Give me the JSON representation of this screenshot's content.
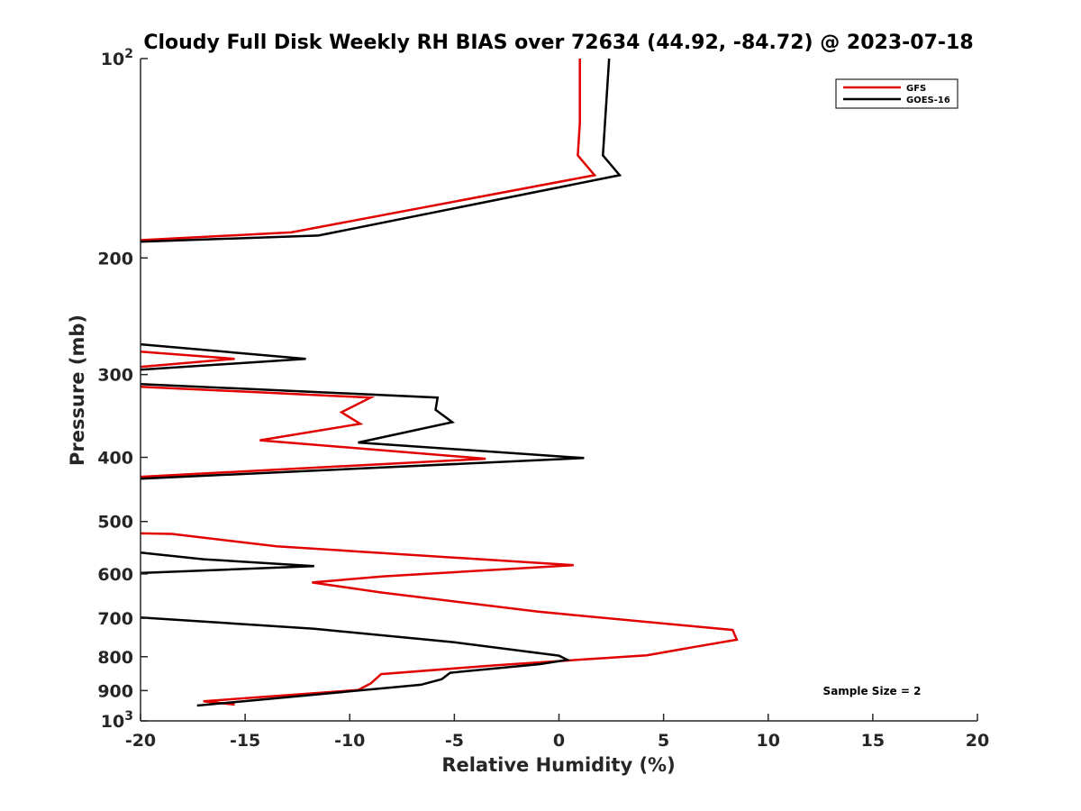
{
  "chart_data": {
    "type": "line",
    "title": "Cloudy Full Disk Weekly RH BIAS over 72634 (44.92, -84.72) @ 2023-07-18",
    "xlabel": "Relative Humidity (%)",
    "ylabel": "Pressure (mb)",
    "xlim": [
      -20,
      20
    ],
    "ylim": [
      100,
      1000
    ],
    "yscale": "log",
    "y_reversed": true,
    "grid": false,
    "legend_position": "top-right",
    "x_ticks": [
      -20,
      -15,
      -10,
      -5,
      0,
      5,
      10,
      15,
      20
    ],
    "x_tick_labels": [
      "-20",
      "-15",
      "-10",
      "-5",
      "0",
      "5",
      "10",
      "15",
      "20"
    ],
    "y_ticks": [
      {
        "value": 100,
        "base": "10",
        "exp": "2"
      },
      {
        "value": 200,
        "label": "200"
      },
      {
        "value": 300,
        "label": "300"
      },
      {
        "value": 400,
        "label": "400"
      },
      {
        "value": 500,
        "label": "500"
      },
      {
        "value": 600,
        "label": "600"
      },
      {
        "value": 700,
        "label": "700"
      },
      {
        "value": 800,
        "label": "800"
      },
      {
        "value": 900,
        "label": "900"
      },
      {
        "value": 1000,
        "base": "10",
        "exp": "3"
      }
    ],
    "annotation": "Sample Size = 2",
    "series": [
      {
        "name": "GFS",
        "color": "#e00000",
        "segments": [
          [
            [
              1.0,
              100
            ],
            [
              1.0,
              125
            ],
            [
              0.9,
              140
            ],
            [
              1.7,
              150
            ],
            [
              -12.8,
              183
            ],
            [
              -20,
              188
            ]
          ],
          [
            [
              -20,
              277
            ],
            [
              -15.5,
              284
            ],
            [
              -20,
              292
            ]
          ],
          [
            [
              -20,
              313
            ],
            [
              -9.0,
              325
            ],
            [
              -10.4,
              342
            ],
            [
              -9.5,
              356
            ],
            [
              -14.3,
              377
            ],
            [
              -3.5,
              402
            ],
            [
              -20,
              428
            ]
          ],
          [
            [
              -20,
              521
            ],
            [
              -18.5,
              522
            ],
            [
              -13.5,
              545
            ],
            [
              0.7,
              582
            ],
            [
              -8.4,
              605
            ],
            [
              -11.8,
              618
            ],
            [
              -8.5,
              640
            ],
            [
              -1.0,
              684
            ],
            [
              8.3,
              729
            ],
            [
              8.5,
              754
            ],
            [
              6.5,
              773
            ],
            [
              4.2,
              796
            ],
            [
              -3.0,
              824
            ],
            [
              -8.5,
              850
            ],
            [
              -9.0,
              878
            ],
            [
              -9.6,
              898
            ],
            [
              -17.0,
              934
            ],
            [
              -15.5,
              945
            ]
          ]
        ]
      },
      {
        "name": "GOES-16",
        "color": "#000000",
        "segments": [
          [
            [
              2.4,
              100
            ],
            [
              2.2,
              125
            ],
            [
              2.1,
              140
            ],
            [
              2.9,
              150
            ],
            [
              -11.5,
              185
            ],
            [
              -20,
              189
            ]
          ],
          [
            [
              -20,
              270
            ],
            [
              -12.1,
              284
            ],
            [
              -20,
              295
            ]
          ],
          [
            [
              -20,
              310
            ],
            [
              -5.8,
              325
            ],
            [
              -5.9,
              339
            ],
            [
              -5.1,
              354
            ],
            [
              -9.6,
              380
            ],
            [
              1.2,
              401
            ],
            [
              -20,
              431
            ]
          ],
          [
            [
              -20,
              557
            ],
            [
              -17.0,
              570
            ],
            [
              -11.7,
              584
            ],
            [
              -20,
              598
            ]
          ],
          [
            [
              -20,
              698
            ],
            [
              -11.7,
              726
            ],
            [
              -5.0,
              761
            ],
            [
              0.0,
              797
            ],
            [
              0.4,
              809
            ],
            [
              -0.9,
              821
            ],
            [
              -5.2,
              846
            ],
            [
              -5.6,
              865
            ],
            [
              -6.6,
              882
            ],
            [
              -17.3,
              948
            ]
          ]
        ]
      }
    ]
  }
}
